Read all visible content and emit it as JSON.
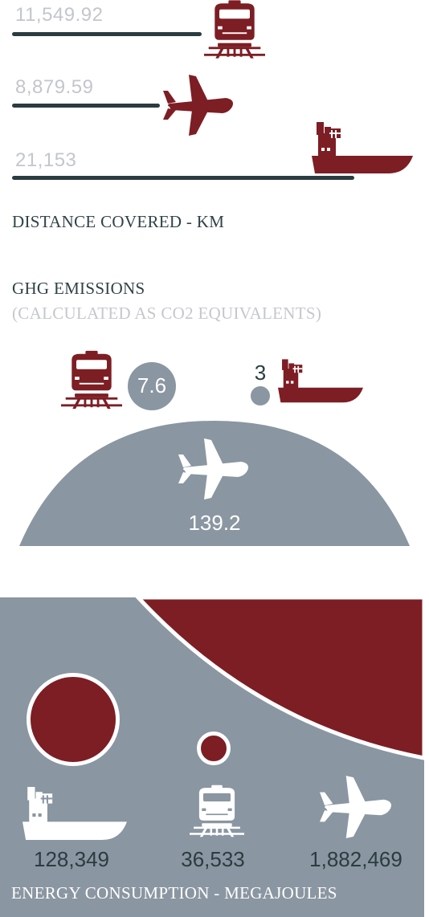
{
  "colors": {
    "red": "#7d1e24",
    "grey": "#8a96a1",
    "dark": "#2b3c40",
    "value_light": "#c2c7cc",
    "white": "#ffffff"
  },
  "distance": {
    "label": "DISTANCE COVERED - KM",
    "rows": [
      {
        "mode": "rail",
        "icon": "train-icon",
        "value": "11,549.92"
      },
      {
        "mode": "air",
        "icon": "plane-icon",
        "value": "8,879.59"
      },
      {
        "mode": "sea",
        "icon": "ship-icon",
        "value": "21,153"
      }
    ]
  },
  "ghg": {
    "title": "GHG EMISSIONS",
    "subtitle": "(CALCULATED AS CO2 EQUIVALENTS)",
    "items": [
      {
        "mode": "rail",
        "icon": "train-icon",
        "value": "7.6"
      },
      {
        "mode": "sea",
        "icon": "ship-icon",
        "value": "3"
      },
      {
        "mode": "air",
        "icon": "plane-icon",
        "value": "139.2"
      }
    ]
  },
  "energy": {
    "label": "ENERGY CONSUMPTION - MEGAJOULES",
    "items": [
      {
        "mode": "sea",
        "icon": "ship-icon",
        "value": "128,349"
      },
      {
        "mode": "rail",
        "icon": "train-icon",
        "value": "36,533"
      },
      {
        "mode": "air",
        "icon": "plane-icon",
        "value": "1,882,469"
      }
    ]
  },
  "chart_data": [
    {
      "type": "bar",
      "categories": [
        "rail",
        "air",
        "sea"
      ],
      "values": [
        11549.92,
        8879.59,
        21153
      ],
      "title": "DISTANCE COVERED - KM"
    },
    {
      "type": "scatter",
      "categories": [
        "rail",
        "sea",
        "air"
      ],
      "values": [
        7.6,
        3,
        139.2
      ],
      "title": "GHG EMISSIONS",
      "subtitle": "(CALCULATED AS CO2 EQUIVALENTS)"
    },
    {
      "type": "scatter",
      "categories": [
        "sea",
        "rail",
        "air"
      ],
      "values": [
        128349,
        36533,
        1882469
      ],
      "title": "ENERGY CONSUMPTION - MEGAJOULES"
    }
  ]
}
